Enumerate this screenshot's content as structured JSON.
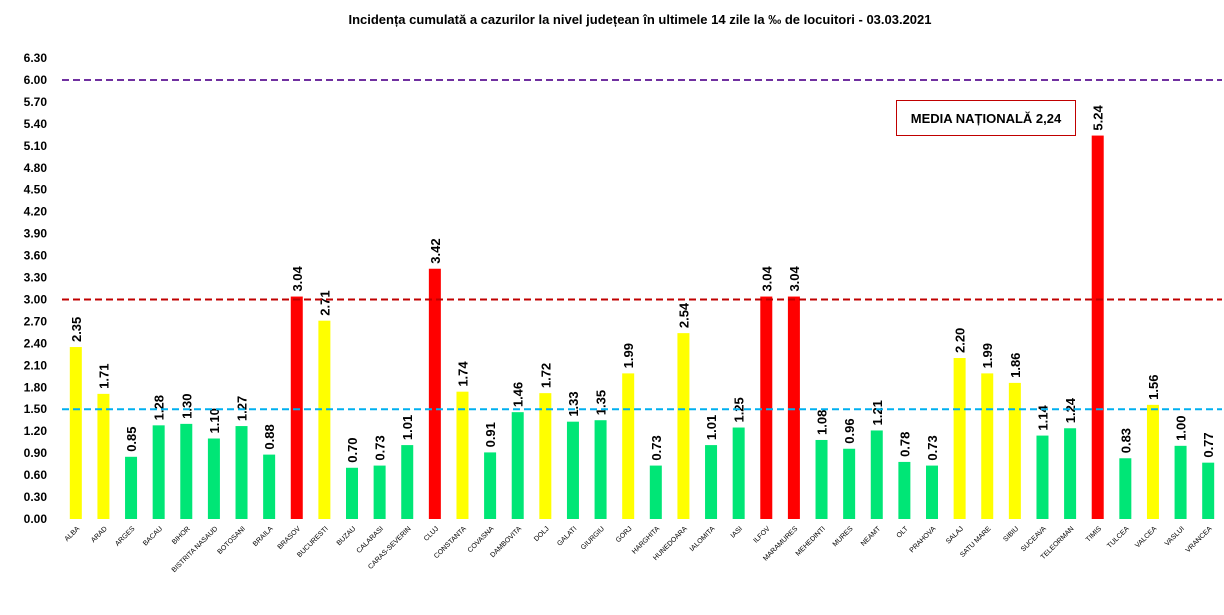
{
  "chart_data": {
    "type": "bar",
    "title": "Incidența cumulată a cazurilor la nivel județean în ultimele 14 zile la ‰ de locuitori - 03.03.2021",
    "xlabel": "",
    "ylabel": "",
    "ylim": [
      0,
      6.3
    ],
    "yticks": [
      "0.00",
      "0.30",
      "0.60",
      "0.90",
      "1.20",
      "1.50",
      "1.80",
      "2.10",
      "2.40",
      "2.70",
      "3.00",
      "3.30",
      "3.60",
      "3.90",
      "4.20",
      "4.50",
      "4.80",
      "5.10",
      "5.40",
      "5.70",
      "6.00",
      "6.30"
    ],
    "grid": false,
    "categories": [
      "ALBA",
      "ARAD",
      "ARGES",
      "BACAU",
      "BIHOR",
      "BISTRITA NASAUD",
      "BOTOSANI",
      "BRAILA",
      "BRASOV",
      "BUCURESTI",
      "BUZAU",
      "CALARASI",
      "CARAS-SEVERIN",
      "CLUJ",
      "CONSTANTA",
      "COVASNA",
      "DAMBOVITA",
      "DOLJ",
      "GALATI",
      "GIURGIU",
      "GORJ",
      "HARGHITA",
      "HUNEDOARA",
      "IALOMITA",
      "IASI",
      "ILFOV",
      "MARAMURES",
      "MEHEDINTI",
      "MURES",
      "NEAMT",
      "OLT",
      "PRAHOVA",
      "SALAJ",
      "SATU MARE",
      "SIBIU",
      "SUCEAVA",
      "TELEORMAN",
      "TIMIS",
      "TULCEA",
      "VALCEA",
      "VASLUI",
      "VRANCEA"
    ],
    "values": [
      2.35,
      1.71,
      0.85,
      1.28,
      1.3,
      1.1,
      1.27,
      0.88,
      3.04,
      2.71,
      0.7,
      0.73,
      1.01,
      3.42,
      1.74,
      0.91,
      1.46,
      1.72,
      1.33,
      1.35,
      1.99,
      0.73,
      2.54,
      1.01,
      1.25,
      3.04,
      3.04,
      1.08,
      0.96,
      1.21,
      0.78,
      0.73,
      2.2,
      1.99,
      1.86,
      1.14,
      1.24,
      5.24,
      0.83,
      1.56,
      1.0,
      0.77
    ],
    "reference_lines": [
      {
        "value": 6.0,
        "color": "#7030a0",
        "style": "dashed"
      },
      {
        "value": 3.0,
        "color": "#c00000",
        "style": "dashed"
      },
      {
        "value": 1.5,
        "color": "#00b0f0",
        "style": "dashed"
      }
    ],
    "colors": {
      "low": "#00e676",
      "medium": "#ffff00",
      "high": "#ff0000"
    },
    "annotation": "MEDIA NAȚIONALĂ 2,24"
  }
}
